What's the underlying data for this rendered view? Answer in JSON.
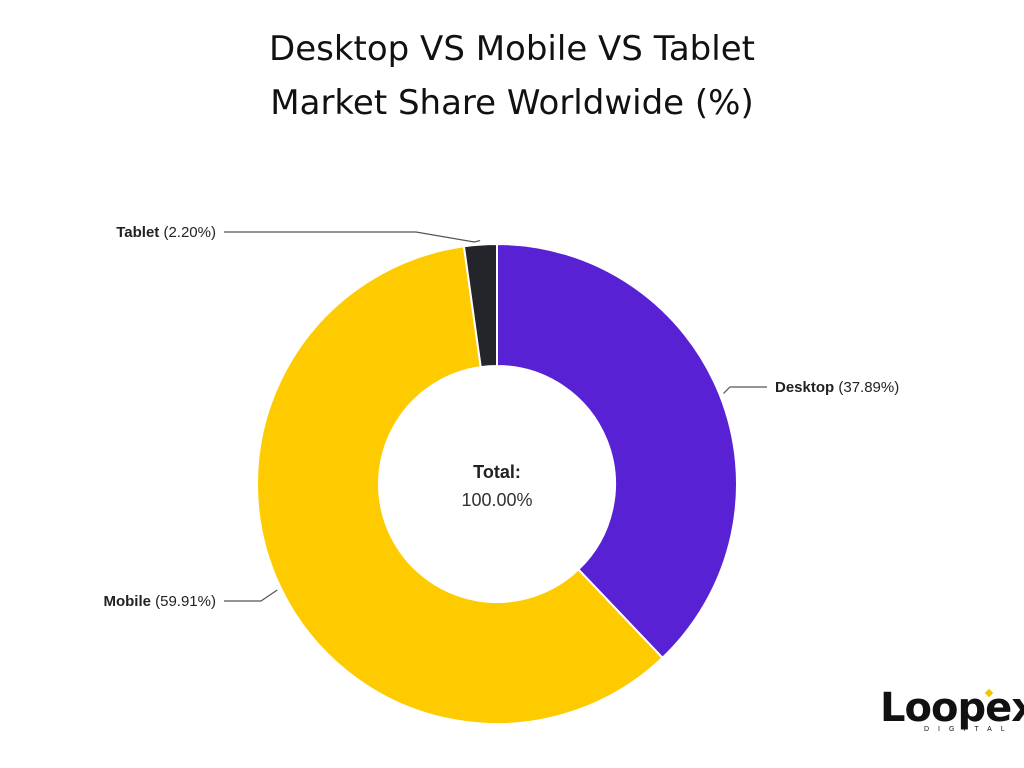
{
  "title": {
    "line1": "Desktop VS Mobile VS Tablet",
    "line2": "Market Share Worldwide (%)"
  },
  "chart_data": {
    "type": "pie",
    "donut": true,
    "categories": [
      "Desktop",
      "Mobile",
      "Tablet"
    ],
    "values": [
      37.89,
      59.91,
      2.2
    ],
    "value_labels": [
      "(37.89%)",
      "(59.91%)",
      "(2.20%)"
    ],
    "colors": [
      "#5821d4",
      "#fecb00",
      "#24252b"
    ],
    "center_label": "Total:",
    "center_value": "100.00%"
  },
  "logo": {
    "text": "Loopex",
    "subtext": "DIGITAL"
  }
}
